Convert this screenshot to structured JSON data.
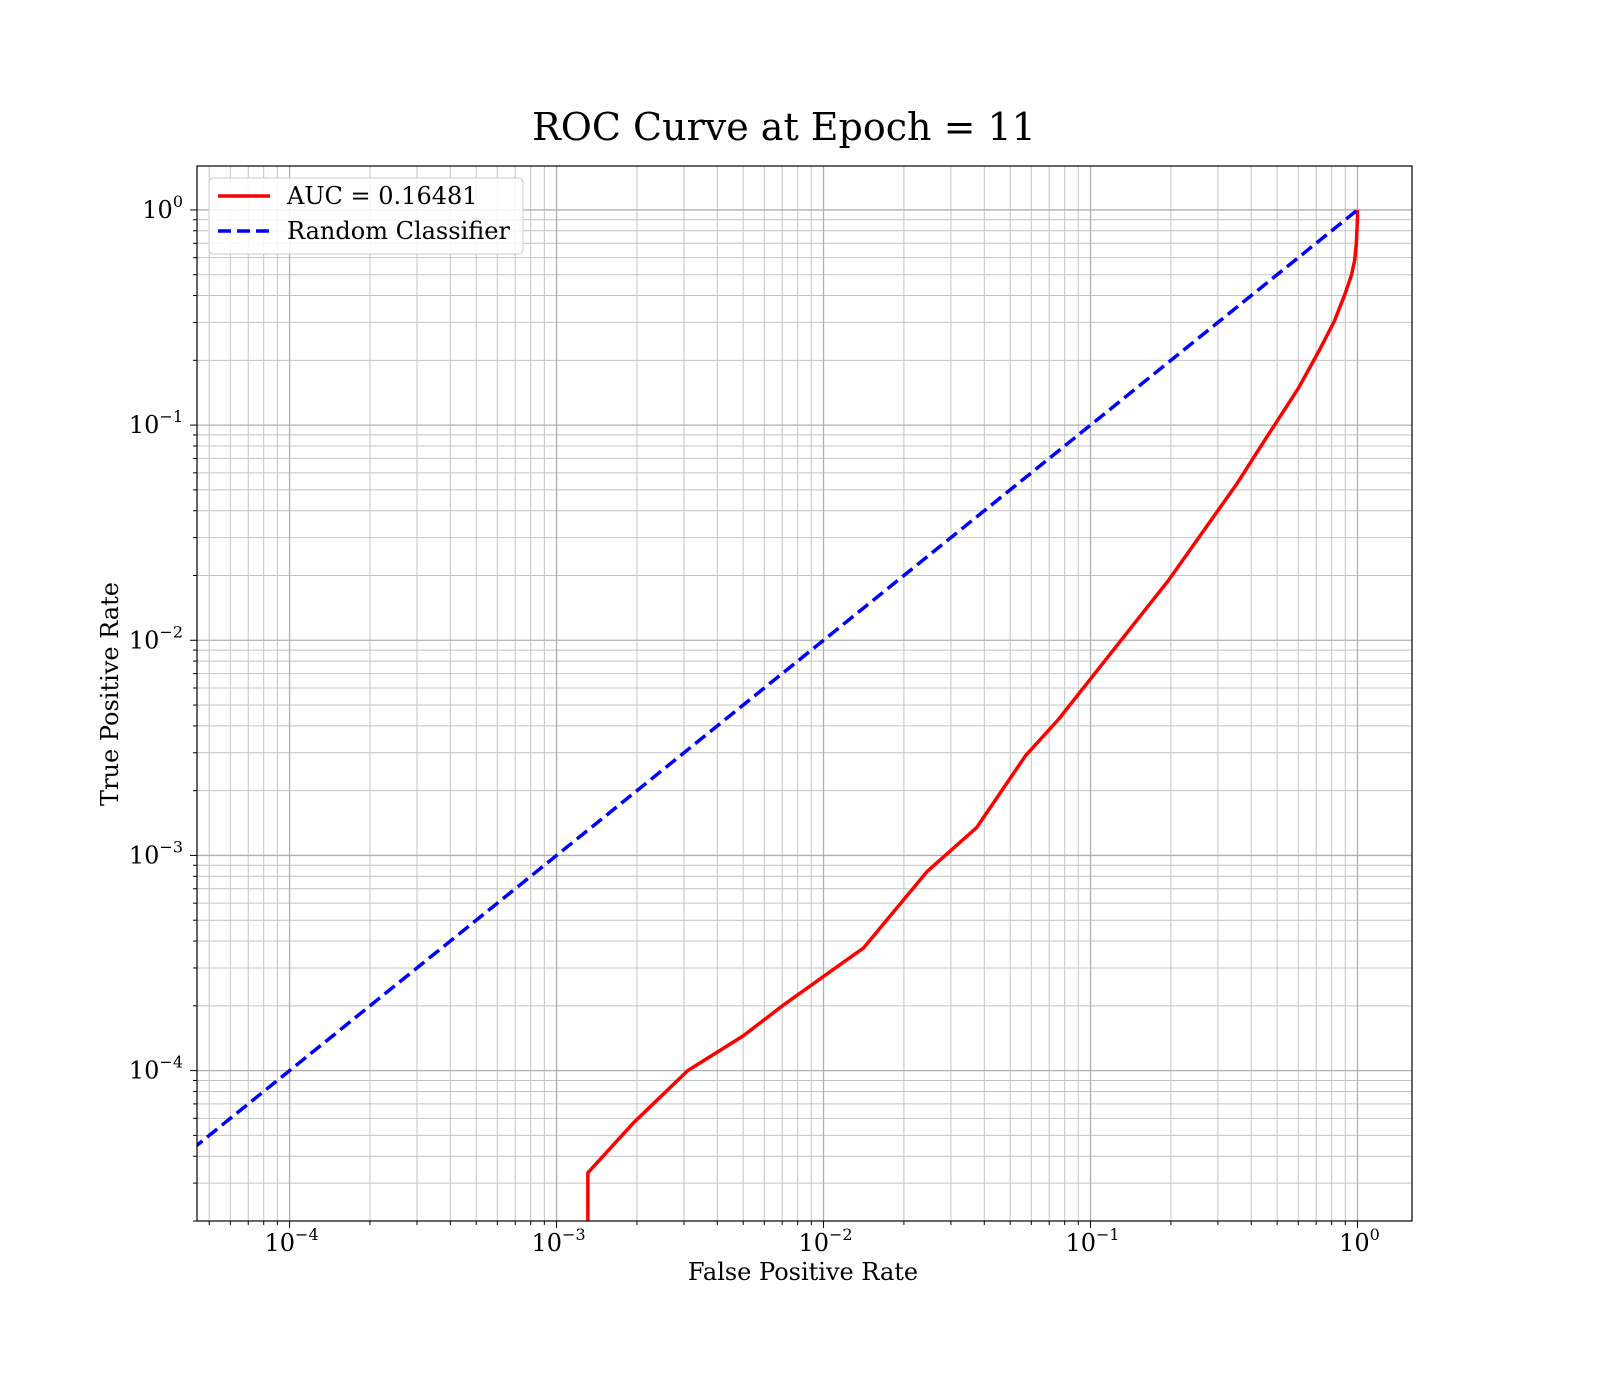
{
  "chart_data": {
    "type": "line",
    "title": "ROC Curve at Epoch = 11",
    "xlabel": "False Positive Rate",
    "ylabel": "True Positive Rate",
    "xscale": "log",
    "yscale": "log",
    "xlim": [
      4.5e-05,
      1.6
    ],
    "ylim": [
      2e-05,
      1.6
    ],
    "grid": "both (major and minor)",
    "legend_position": "top-left",
    "x_ticks": [
      {
        "value": 0.0001,
        "base": "10",
        "exp": "−4"
      },
      {
        "value": 0.001,
        "base": "10",
        "exp": "−3"
      },
      {
        "value": 0.01,
        "base": "10",
        "exp": "−2"
      },
      {
        "value": 0.1,
        "base": "10",
        "exp": "−1"
      },
      {
        "value": 1,
        "base": "10",
        "exp": "0"
      }
    ],
    "y_ticks": [
      {
        "value": 0.0001,
        "base": "10",
        "exp": "−4"
      },
      {
        "value": 0.001,
        "base": "10",
        "exp": "−3"
      },
      {
        "value": 0.01,
        "base": "10",
        "exp": "−2"
      },
      {
        "value": 0.1,
        "base": "10",
        "exp": "−1"
      },
      {
        "value": 1,
        "base": "10",
        "exp": "0"
      }
    ],
    "series": [
      {
        "name": "AUC = 0.16481",
        "color": "#ff0000",
        "style": "solid",
        "points": [
          [
            0.00131,
            2e-05
          ],
          [
            0.00131,
            3.35e-05
          ],
          [
            0.00195,
            5.75e-05
          ],
          [
            0.0031,
            0.0001
          ],
          [
            0.005,
            0.000145
          ],
          [
            0.0072,
            0.000205
          ],
          [
            0.0141,
            0.000371
          ],
          [
            0.0245,
            0.000845
          ],
          [
            0.0375,
            0.00135
          ],
          [
            0.057,
            0.0029
          ],
          [
            0.076,
            0.0043
          ],
          [
            0.112,
            0.0079
          ],
          [
            0.196,
            0.019
          ],
          [
            0.352,
            0.053
          ],
          [
            0.46,
            0.089
          ],
          [
            0.6,
            0.148
          ],
          [
            0.72,
            0.223
          ],
          [
            0.82,
            0.305
          ],
          [
            0.9,
            0.41
          ],
          [
            0.95,
            0.5
          ],
          [
            0.975,
            0.58
          ],
          [
            0.99,
            0.7
          ],
          [
            0.995,
            0.8
          ],
          [
            1.0,
            0.92
          ],
          [
            1.0,
            1.0
          ]
        ]
      },
      {
        "name": "Random Classifier",
        "color": "#0000ff",
        "style": "dashed",
        "points": [
          [
            4.32e-05,
            4.32e-05
          ],
          [
            1.0,
            1.0
          ]
        ]
      }
    ]
  }
}
